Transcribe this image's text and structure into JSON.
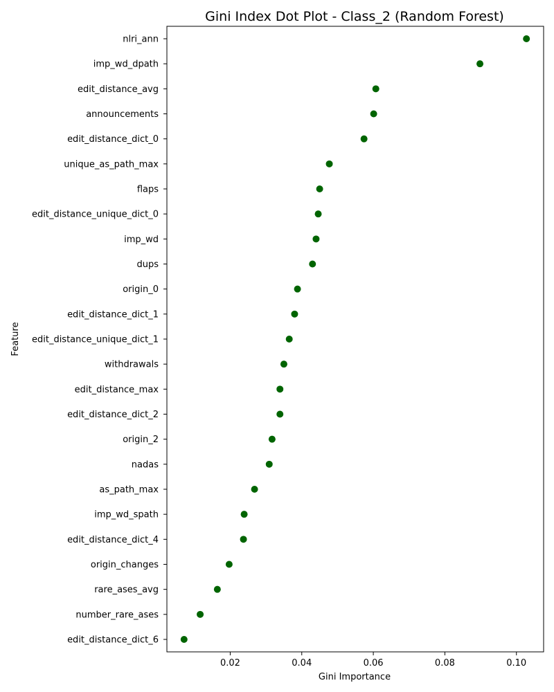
{
  "chart_data": {
    "type": "scatter",
    "title": "Gini Index Dot Plot - Class_2 (Random Forest)",
    "xlabel": "Gini Importance",
    "ylabel": "Feature",
    "xlim": [
      0.0023,
      0.1076
    ],
    "xticks": [
      0.02,
      0.04,
      0.06,
      0.08,
      0.1
    ],
    "xtick_labels": [
      "0.02",
      "0.04",
      "0.06",
      "0.08",
      "0.10"
    ],
    "grid": false,
    "marker_color": "#006400",
    "categories": [
      "nlri_ann",
      "imp_wd_dpath",
      "edit_distance_avg",
      "announcements",
      "edit_distance_dict_0",
      "unique_as_path_max",
      "flaps",
      "edit_distance_unique_dict_0",
      "imp_wd",
      "dups",
      "origin_0",
      "edit_distance_dict_1",
      "edit_distance_unique_dict_1",
      "withdrawals",
      "edit_distance_max",
      "edit_distance_dict_2",
      "origin_2",
      "nadas",
      "as_path_max",
      "imp_wd_spath",
      "edit_distance_dict_4",
      "origin_changes",
      "rare_ases_avg",
      "number_rare_ases",
      "edit_distance_dict_6"
    ],
    "values": [
      0.1028,
      0.0898,
      0.0607,
      0.0601,
      0.0574,
      0.0477,
      0.045,
      0.0446,
      0.044,
      0.043,
      0.0388,
      0.038,
      0.0365,
      0.035,
      0.0339,
      0.0339,
      0.0317,
      0.0309,
      0.0268,
      0.0239,
      0.0237,
      0.0197,
      0.0164,
      0.0116,
      0.0071
    ]
  }
}
